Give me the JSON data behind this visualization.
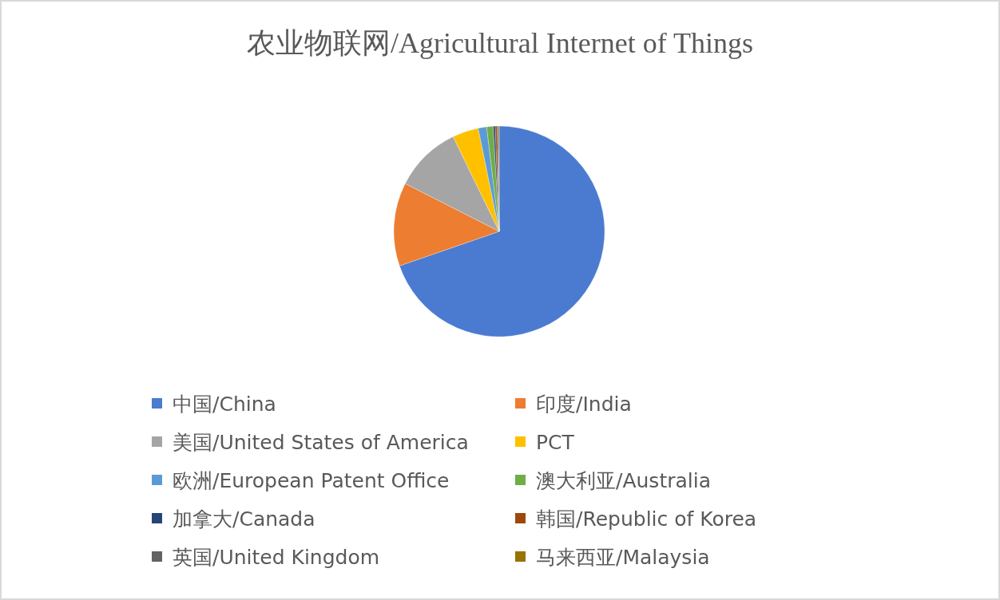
{
  "chart_data": {
    "type": "pie",
    "title": "农业物联网/Agricultural Internet of Things",
    "categories": [
      "中国/China",
      "印度/India",
      "美国/United States of America",
      "PCT",
      "欧洲/European Patent Office",
      "澳大利亚/Australia",
      "加拿大/Canada",
      "韩国/Republic of Korea",
      "英国/United Kingdom",
      "马来西亚/Malaysia"
    ],
    "values": [
      69.7,
      12.8,
      10.3,
      4.0,
      1.3,
      1.0,
      0.3,
      0.3,
      0.2,
      0.1
    ],
    "colors": [
      "#4a7bd0",
      "#ed7d31",
      "#a5a5a5",
      "#ffc000",
      "#5b9bd5",
      "#70ad47",
      "#264478",
      "#9e480e",
      "#636363",
      "#997300"
    ],
    "legend": "bottom"
  }
}
